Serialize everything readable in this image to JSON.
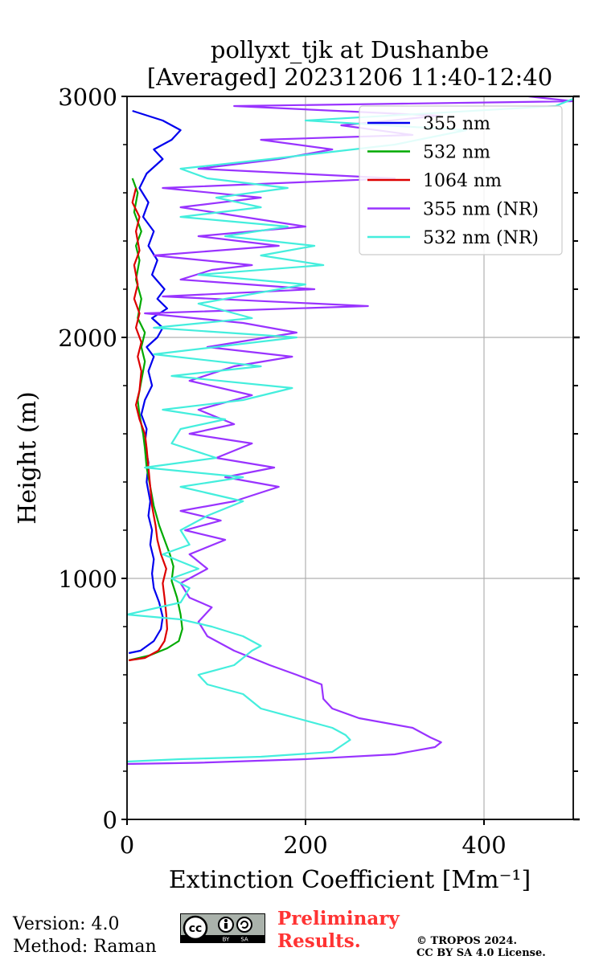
{
  "chart_data": {
    "type": "line",
    "title": [
      "pollyxt_tjk at Dushanbe",
      "[Averaged] 20231206 11:40-12:40"
    ],
    "xlabel": "Extinction Coefficient [Mm⁻¹]",
    "ylabel": "Height (m)",
    "xlim": [
      0,
      500
    ],
    "ylim": [
      0,
      3000
    ],
    "xticks": [
      0,
      200,
      400
    ],
    "yticks": [
      0,
      1000,
      2000,
      3000
    ],
    "grid": true,
    "legend_position": "top-right",
    "series": [
      {
        "name": "355 nm",
        "color": "#0000ee",
        "points": [
          [
            2,
            690
          ],
          [
            15,
            700
          ],
          [
            30,
            740
          ],
          [
            38,
            790
          ],
          [
            40,
            840
          ],
          [
            36,
            900
          ],
          [
            30,
            960
          ],
          [
            28,
            1020
          ],
          [
            30,
            1080
          ],
          [
            26,
            1140
          ],
          [
            28,
            1200
          ],
          [
            24,
            1260
          ],
          [
            26,
            1320
          ],
          [
            22,
            1400
          ],
          [
            24,
            1480
          ],
          [
            20,
            1560
          ],
          [
            22,
            1620
          ],
          [
            16,
            1680
          ],
          [
            20,
            1740
          ],
          [
            28,
            1800
          ],
          [
            24,
            1860
          ],
          [
            30,
            1920
          ],
          [
            22,
            1960
          ],
          [
            34,
            2000
          ],
          [
            40,
            2040
          ],
          [
            28,
            2080
          ],
          [
            45,
            2120
          ],
          [
            34,
            2160
          ],
          [
            42,
            2200
          ],
          [
            28,
            2260
          ],
          [
            34,
            2320
          ],
          [
            24,
            2380
          ],
          [
            30,
            2440
          ],
          [
            18,
            2500
          ],
          [
            24,
            2560
          ],
          [
            14,
            2620
          ],
          [
            22,
            2680
          ],
          [
            40,
            2740
          ],
          [
            30,
            2780
          ],
          [
            50,
            2820
          ],
          [
            60,
            2860
          ],
          [
            40,
            2900
          ],
          [
            6,
            2940
          ]
        ]
      },
      {
        "name": "532 nm",
        "color": "#00aa00",
        "points": [
          [
            2,
            660
          ],
          [
            25,
            680
          ],
          [
            45,
            710
          ],
          [
            58,
            740
          ],
          [
            62,
            790
          ],
          [
            60,
            850
          ],
          [
            56,
            920
          ],
          [
            50,
            990
          ],
          [
            52,
            1050
          ],
          [
            48,
            1100
          ],
          [
            42,
            1160
          ],
          [
            36,
            1220
          ],
          [
            30,
            1300
          ],
          [
            26,
            1380
          ],
          [
            22,
            1460
          ],
          [
            20,
            1540
          ],
          [
            18,
            1600
          ],
          [
            14,
            1680
          ],
          [
            12,
            1740
          ],
          [
            16,
            1820
          ],
          [
            20,
            1900
          ],
          [
            16,
            1960
          ],
          [
            20,
            2020
          ],
          [
            12,
            2080
          ],
          [
            16,
            2160
          ],
          [
            10,
            2240
          ],
          [
            14,
            2320
          ],
          [
            10,
            2380
          ],
          [
            16,
            2440
          ],
          [
            8,
            2520
          ],
          [
            12,
            2600
          ],
          [
            6,
            2660
          ]
        ]
      },
      {
        "name": "1064 nm",
        "color": "#dd0000",
        "points": [
          [
            2,
            660
          ],
          [
            20,
            670
          ],
          [
            35,
            700
          ],
          [
            42,
            740
          ],
          [
            45,
            790
          ],
          [
            44,
            850
          ],
          [
            42,
            920
          ],
          [
            40,
            980
          ],
          [
            44,
            1040
          ],
          [
            38,
            1100
          ],
          [
            34,
            1160
          ],
          [
            32,
            1220
          ],
          [
            28,
            1300
          ],
          [
            26,
            1380
          ],
          [
            24,
            1460
          ],
          [
            22,
            1540
          ],
          [
            20,
            1600
          ],
          [
            14,
            1660
          ],
          [
            10,
            1720
          ],
          [
            14,
            1780
          ],
          [
            16,
            1860
          ],
          [
            12,
            1920
          ],
          [
            16,
            1980
          ],
          [
            10,
            2040
          ],
          [
            14,
            2100
          ],
          [
            8,
            2160
          ],
          [
            12,
            2220
          ],
          [
            8,
            2300
          ],
          [
            14,
            2360
          ],
          [
            10,
            2440
          ],
          [
            14,
            2500
          ],
          [
            6,
            2560
          ],
          [
            10,
            2620
          ]
        ]
      },
      {
        "name": "355 nm (NR)",
        "color": "#9933ff",
        "points": [
          [
            0,
            230
          ],
          [
            80,
            235
          ],
          [
            200,
            250
          ],
          [
            300,
            270
          ],
          [
            345,
            300
          ],
          [
            352,
            320
          ],
          [
            340,
            340
          ],
          [
            320,
            380
          ],
          [
            260,
            420
          ],
          [
            230,
            460
          ],
          [
            220,
            500
          ],
          [
            218,
            560
          ],
          [
            190,
            600
          ],
          [
            160,
            640
          ],
          [
            120,
            700
          ],
          [
            90,
            760
          ],
          [
            80,
            820
          ],
          [
            95,
            880
          ],
          [
            70,
            920
          ],
          [
            60,
            980
          ],
          [
            90,
            1040
          ],
          [
            70,
            1100
          ],
          [
            110,
            1160
          ],
          [
            65,
            1200
          ],
          [
            105,
            1240
          ],
          [
            60,
            1280
          ],
          [
            120,
            1320
          ],
          [
            170,
            1380
          ],
          [
            110,
            1420
          ],
          [
            165,
            1460
          ],
          [
            100,
            1500
          ],
          [
            140,
            1560
          ],
          [
            70,
            1600
          ],
          [
            120,
            1640
          ],
          [
            80,
            1700
          ],
          [
            140,
            1760
          ],
          [
            70,
            1820
          ],
          [
            120,
            1880
          ],
          [
            185,
            1920
          ],
          [
            90,
            1960
          ],
          [
            190,
            2020
          ],
          [
            130,
            2060
          ],
          [
            20,
            2100
          ],
          [
            270,
            2130
          ],
          [
            40,
            2170
          ],
          [
            210,
            2200
          ],
          [
            60,
            2240
          ],
          [
            95,
            2280
          ],
          [
            140,
            2300
          ],
          [
            30,
            2340
          ],
          [
            170,
            2380
          ],
          [
            80,
            2420
          ],
          [
            200,
            2460
          ],
          [
            130,
            2500
          ],
          [
            60,
            2540
          ],
          [
            150,
            2580
          ],
          [
            40,
            2620
          ],
          [
            300,
            2660
          ],
          [
            80,
            2700
          ],
          [
            170,
            2740
          ],
          [
            230,
            2780
          ],
          [
            150,
            2820
          ],
          [
            320,
            2840
          ],
          [
            240,
            2880
          ],
          [
            350,
            2920
          ],
          [
            120,
            2960
          ],
          [
            500,
            2980
          ],
          [
            450,
            3000
          ]
        ]
      },
      {
        "name": "532 nm (NR)",
        "color": "#44eedd",
        "points": [
          [
            0,
            240
          ],
          [
            60,
            250
          ],
          [
            150,
            260
          ],
          [
            230,
            280
          ],
          [
            250,
            330
          ],
          [
            245,
            350
          ],
          [
            230,
            380
          ],
          [
            190,
            420
          ],
          [
            150,
            460
          ],
          [
            130,
            520
          ],
          [
            90,
            560
          ],
          [
            80,
            600
          ],
          [
            120,
            640
          ],
          [
            140,
            700
          ],
          [
            150,
            720
          ],
          [
            130,
            760
          ],
          [
            95,
            800
          ],
          [
            60,
            830
          ],
          [
            0,
            850
          ],
          [
            60,
            900
          ],
          [
            70,
            960
          ],
          [
            50,
            1000
          ],
          [
            80,
            1040
          ],
          [
            40,
            1100
          ],
          [
            70,
            1140
          ],
          [
            60,
            1200
          ],
          [
            90,
            1260
          ],
          [
            130,
            1320
          ],
          [
            60,
            1380
          ],
          [
            130,
            1420
          ],
          [
            20,
            1460
          ],
          [
            100,
            1500
          ],
          [
            50,
            1560
          ],
          [
            60,
            1620
          ],
          [
            110,
            1660
          ],
          [
            40,
            1700
          ],
          [
            130,
            1740
          ],
          [
            185,
            1790
          ],
          [
            50,
            1840
          ],
          [
            150,
            1880
          ],
          [
            30,
            1930
          ],
          [
            190,
            2000
          ],
          [
            30,
            2040
          ],
          [
            140,
            2080
          ],
          [
            120,
            2100
          ],
          [
            80,
            2140
          ],
          [
            200,
            2220
          ],
          [
            80,
            2260
          ],
          [
            220,
            2300
          ],
          [
            150,
            2340
          ],
          [
            210,
            2380
          ],
          [
            110,
            2420
          ],
          [
            180,
            2460
          ],
          [
            60,
            2500
          ],
          [
            150,
            2540
          ],
          [
            100,
            2580
          ],
          [
            180,
            2620
          ],
          [
            90,
            2660
          ],
          [
            60,
            2700
          ],
          [
            160,
            2740
          ],
          [
            300,
            2800
          ],
          [
            380,
            2860
          ],
          [
            200,
            2900
          ],
          [
            480,
            2960
          ],
          [
            500,
            2990
          ]
        ]
      }
    ]
  },
  "footer": {
    "version": "Version: 4.0",
    "method": "Method: Raman",
    "preliminary_line1": "Preliminary",
    "preliminary_line2": "Results.",
    "copyright_line1": "© TROPOS 2024.",
    "copyright_line2": "CC BY SA 4.0 License.",
    "license_badge": {
      "cc": "cc",
      "by": "BY",
      "sa": "SA"
    }
  }
}
